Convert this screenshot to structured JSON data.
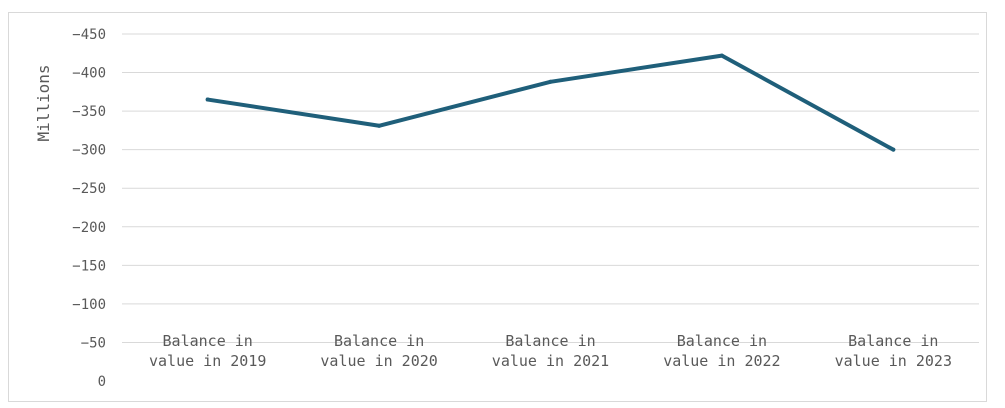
{
  "chart_data": {
    "type": "line",
    "title": "",
    "xlabel": "",
    "ylabel": "Millions",
    "categories": [
      [
        "Balance in",
        "value in 2019"
      ],
      [
        "Balance in",
        "value in 2020"
      ],
      [
        "Balance in",
        "value in 2021"
      ],
      [
        "Balance in",
        "value in 2022"
      ],
      [
        "Balance in",
        "value in 2023"
      ]
    ],
    "series": [
      {
        "color": "#1f5f7a",
        "values": [
          -365,
          -331,
          -388,
          -422,
          -300
        ]
      }
    ],
    "ylim": [
      0,
      -450
    ],
    "ytick_values": [
      0,
      -50,
      -100,
      -150,
      -200,
      -250,
      -300,
      -350,
      -400,
      -450
    ],
    "ytick_labels": [
      "0",
      "−50",
      "−100",
      "−150",
      "−200",
      "−250",
      "−300",
      "−350",
      "−400",
      "−450"
    ],
    "grid": true,
    "legend": "none"
  }
}
